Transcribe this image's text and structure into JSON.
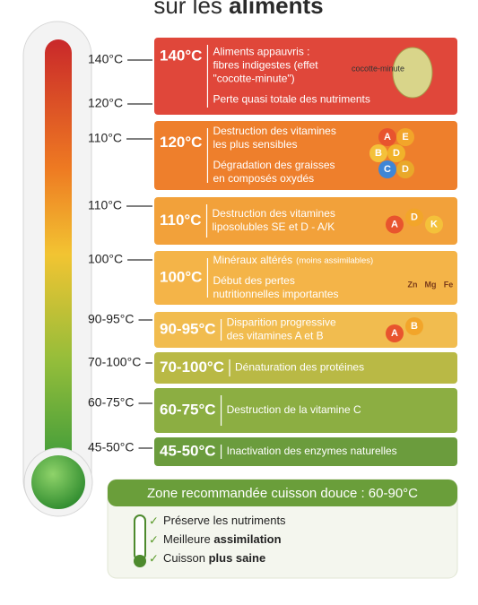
{
  "header": {
    "title": "sur les",
    "title_bold": "aliments"
  },
  "scale": [
    "140°C",
    "120°C",
    "110°C",
    "110°C",
    "100°C",
    "90-95°C",
    "70-100°C",
    "60-75°C",
    "45-50°C"
  ],
  "bands": [
    {
      "temp": "140°C",
      "groups": [
        [
          "Aliments appauvris :",
          "fibres indigestes (effet",
          "\"cocotte-minute\")"
        ],
        [
          "Perte quasi totale des nutriments"
        ]
      ],
      "icon_label": "cocotte-minute"
    },
    {
      "temp": "120°C",
      "groups": [
        [
          "Destruction des vitamines",
          "les plus sensibles"
        ],
        [
          "Dégradation des graisses",
          "en composés oxydés"
        ]
      ],
      "icons": [
        "A",
        "E",
        "B",
        "D",
        "C",
        "D"
      ]
    },
    {
      "temp": "110°C",
      "groups": [
        [
          "Destruction des vitamines",
          "liposolubles SE et D - A/K"
        ]
      ],
      "icons": [
        "A",
        "D",
        "K"
      ]
    },
    {
      "temp": "100°C",
      "groups": [
        [
          "Minéraux altérés"
        ],
        [
          "Début des pertes",
          "nutritionnelles importantes"
        ]
      ],
      "note": "(moins assimilables)",
      "icons": [
        "Zn",
        "Mg",
        "Fe"
      ]
    },
    {
      "temp": "90-95°C",
      "groups": [
        [
          "Disparition progressive",
          "des vitamines A et B"
        ]
      ],
      "icons": [
        "A",
        "B"
      ]
    },
    {
      "temp": "70-100°C",
      "groups": [
        [
          "Dénaturation des protéines"
        ]
      ]
    },
    {
      "temp": "60-75°C",
      "groups": [
        [
          "Destruction de la vitamine C"
        ]
      ]
    },
    {
      "temp": "45-50°C",
      "groups": [
        [
          "Inactivation des enzymes naturelles"
        ]
      ]
    }
  ],
  "recommendation": {
    "title": "Zone recommandée cuisson douce : 60-90°C",
    "items": [
      {
        "text": "Préserve les nutriments"
      },
      {
        "text": "Meilleure",
        "bold": "assimilation"
      },
      {
        "text": "Cuisson",
        "bold": "plus saine"
      }
    ]
  }
}
